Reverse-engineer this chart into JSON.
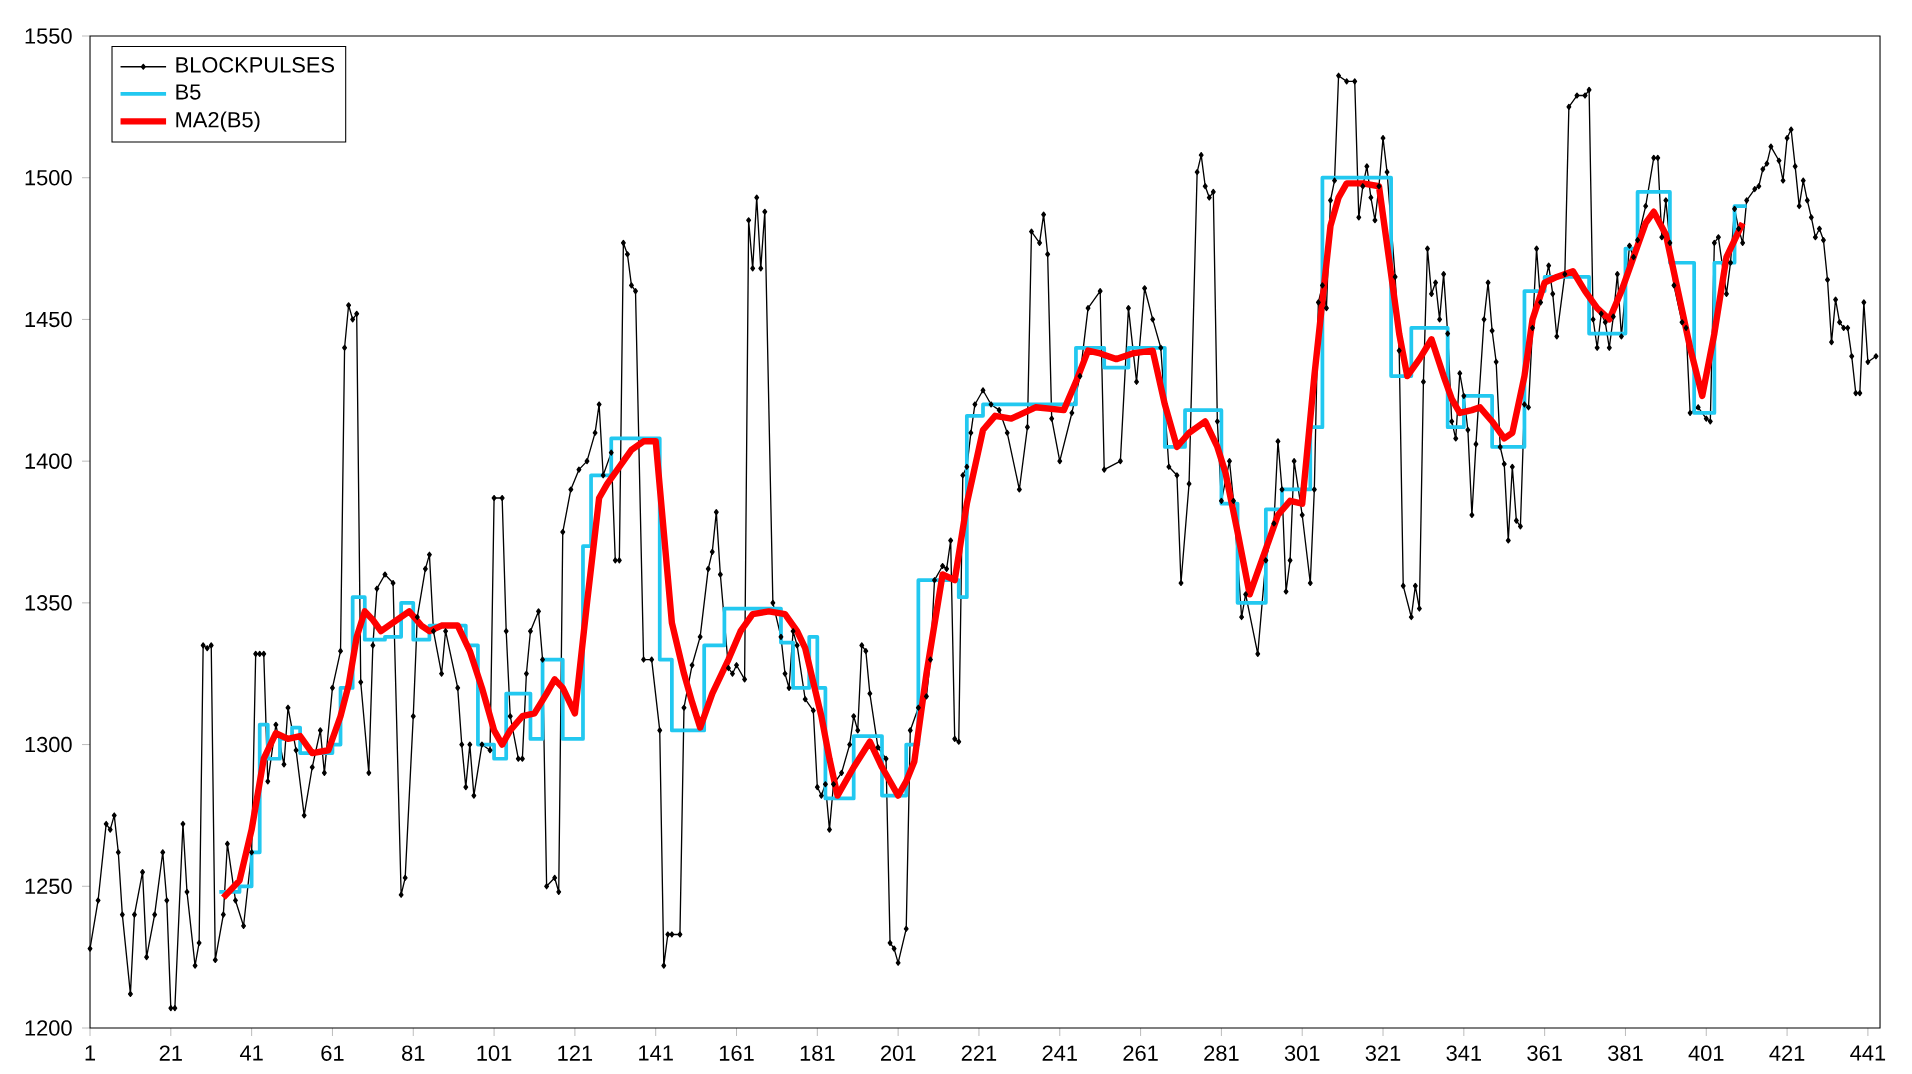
{
  "chart_data": {
    "type": "line",
    "xlim": [
      1,
      444
    ],
    "ylim": [
      1200,
      1550
    ],
    "xticks": [
      1,
      21,
      41,
      61,
      81,
      101,
      121,
      141,
      161,
      181,
      201,
      221,
      241,
      261,
      281,
      301,
      321,
      341,
      361,
      381,
      401,
      421,
      441
    ],
    "yticks": [
      1200,
      1250,
      1300,
      1350,
      1400,
      1450,
      1500,
      1550
    ],
    "legend": "top left",
    "series": [
      {
        "name": "BLOCKPULSES",
        "marker": "diamond",
        "color": "#000000",
        "x": [
          1,
          3,
          5,
          6,
          7,
          8,
          9,
          11,
          12,
          14,
          15,
          17,
          19,
          20,
          21,
          22,
          24,
          25,
          27,
          28,
          29,
          30,
          31,
          32,
          34,
          35,
          37,
          39,
          41,
          42,
          43,
          44,
          45,
          47,
          49,
          50,
          52,
          54,
          56,
          58,
          59,
          61,
          63,
          64,
          65,
          66,
          67,
          68,
          70,
          71,
          72,
          74,
          76,
          78,
          79,
          81,
          82,
          84,
          85,
          86,
          88,
          89,
          92,
          93,
          94,
          95,
          96,
          98,
          100,
          101,
          103,
          104,
          105,
          107,
          108,
          109,
          110,
          112,
          113,
          114,
          116,
          117,
          118,
          120,
          122,
          124,
          126,
          127,
          128,
          130,
          131,
          132,
          133,
          134,
          135,
          136,
          138,
          140,
          142,
          143,
          144,
          145,
          147,
          148,
          150,
          152,
          154,
          155,
          156,
          157,
          159,
          160,
          161,
          163,
          164,
          165,
          166,
          167,
          168,
          170,
          172,
          173,
          174,
          175,
          176,
          178,
          180,
          181,
          182,
          183,
          184,
          185,
          187,
          189,
          190,
          191,
          192,
          193,
          194,
          196,
          198,
          199,
          200,
          201,
          203,
          204,
          206,
          208,
          209,
          210,
          212,
          213,
          214,
          215,
          216,
          217,
          218,
          219,
          220,
          222,
          224,
          226,
          228,
          231,
          233,
          234,
          236,
          237,
          238,
          239,
          241,
          244,
          246,
          248,
          251,
          252,
          256,
          258,
          260,
          262,
          264,
          266,
          268,
          270,
          271,
          273,
          275,
          276,
          277,
          278,
          279,
          280,
          281,
          283,
          284,
          286,
          287,
          290,
          292,
          294,
          295,
          296,
          297,
          298,
          299,
          301,
          303,
          304,
          305,
          306,
          307,
          308,
          309,
          310,
          312,
          314,
          315,
          316,
          317,
          318,
          319,
          320,
          321,
          322,
          324,
          325,
          326,
          328,
          329,
          330,
          331,
          332,
          333,
          334,
          335,
          336,
          337,
          338,
          339,
          340,
          341,
          342,
          343,
          344,
          346,
          347,
          348,
          349,
          350,
          351,
          352,
          353,
          354,
          355,
          356,
          357,
          358,
          359,
          360,
          362,
          363,
          364,
          366,
          367,
          369,
          371,
          372,
          373,
          374,
          375,
          376,
          377,
          378,
          379,
          380,
          382,
          383,
          384,
          386,
          388,
          389,
          390,
          391,
          392,
          393,
          395,
          396,
          397,
          399,
          401,
          402,
          403,
          404,
          406,
          407,
          408,
          409,
          410,
          411,
          413,
          414,
          415,
          416,
          417,
          419,
          420,
          421,
          422,
          423,
          424,
          425,
          426,
          427,
          428,
          429,
          430,
          431,
          432,
          433,
          434,
          435,
          436,
          437,
          438,
          439,
          440,
          441,
          443
        ],
        "values": [
          1228,
          1245,
          1272,
          1270,
          1275,
          1262,
          1240,
          1212,
          1240,
          1255,
          1225,
          1240,
          1262,
          1245,
          1207,
          1207,
          1272,
          1248,
          1222,
          1230,
          1335,
          1334,
          1335,
          1224,
          1240,
          1265,
          1245,
          1236,
          1262,
          1332,
          1332,
          1332,
          1287,
          1307,
          1293,
          1313,
          1298,
          1275,
          1292,
          1305,
          1290,
          1320,
          1333,
          1440,
          1455,
          1450,
          1452,
          1322,
          1290,
          1335,
          1355,
          1360,
          1357,
          1247,
          1253,
          1310,
          1345,
          1362,
          1367,
          1340,
          1325,
          1340,
          1320,
          1300,
          1285,
          1300,
          1282,
          1300,
          1298,
          1387,
          1387,
          1340,
          1310,
          1295,
          1295,
          1325,
          1340,
          1347,
          1330,
          1250,
          1253,
          1248,
          1375,
          1390,
          1397,
          1400,
          1410,
          1420,
          1395,
          1403,
          1365,
          1365,
          1477,
          1473,
          1462,
          1460,
          1330,
          1330,
          1305,
          1222,
          1233,
          1233,
          1233,
          1313,
          1328,
          1338,
          1362,
          1368,
          1382,
          1360,
          1327,
          1325,
          1328,
          1323,
          1485,
          1468,
          1493,
          1468,
          1488,
          1350,
          1338,
          1325,
          1320,
          1340,
          1335,
          1316,
          1312,
          1285,
          1282,
          1286,
          1270,
          1286,
          1290,
          1300,
          1310,
          1305,
          1335,
          1333,
          1318,
          1299,
          1295,
          1230,
          1228,
          1223,
          1235,
          1305,
          1313,
          1317,
          1330,
          1358,
          1363,
          1362,
          1372,
          1302,
          1301,
          1395,
          1398,
          1410,
          1420,
          1425,
          1420,
          1418,
          1410,
          1390,
          1412,
          1481,
          1477,
          1487,
          1473,
          1415,
          1400,
          1417,
          1430,
          1454,
          1460,
          1397,
          1400,
          1454,
          1428,
          1461,
          1450,
          1440,
          1398,
          1395,
          1357,
          1392,
          1502,
          1508,
          1497,
          1493,
          1495,
          1414,
          1386,
          1400,
          1386,
          1345,
          1353,
          1332,
          1365,
          1378,
          1407,
          1390,
          1354,
          1365,
          1400,
          1381,
          1357,
          1390,
          1456,
          1462,
          1454,
          1492,
          1499,
          1536,
          1534,
          1534,
          1486,
          1497,
          1504,
          1493,
          1485,
          1497,
          1514,
          1502,
          1465,
          1439,
          1356,
          1345,
          1356,
          1348,
          1428,
          1475,
          1459,
          1463,
          1450,
          1466,
          1445,
          1414,
          1408,
          1431,
          1423,
          1411,
          1381,
          1406,
          1450,
          1463,
          1446,
          1435,
          1405,
          1399,
          1372,
          1398,
          1379,
          1377,
          1420,
          1419,
          1447,
          1475,
          1456,
          1469,
          1459,
          1444,
          1466,
          1525,
          1529,
          1529,
          1531,
          1450,
          1440,
          1452,
          1449,
          1440,
          1451,
          1466,
          1444,
          1476,
          1472,
          1478,
          1490,
          1507,
          1507,
          1479,
          1492,
          1477,
          1462,
          1449,
          1447,
          1417,
          1419,
          1415,
          1414,
          1477,
          1479,
          1459,
          1470,
          1489,
          1482,
          1477,
          1492,
          1496,
          1497,
          1503,
          1505,
          1511,
          1506,
          1499,
          1514,
          1517,
          1504,
          1490,
          1499,
          1492,
          1486,
          1479,
          1482,
          1478,
          1464,
          1442,
          1457,
          1449,
          1447,
          1447,
          1437,
          1424,
          1424,
          1456,
          1435,
          1437
        ]
      },
      {
        "name": "B5",
        "type": "step",
        "color": "#22c8f0",
        "x": [
          33,
          38,
          41,
          43,
          45,
          48,
          51,
          53,
          61,
          63,
          66,
          69,
          74,
          78,
          81,
          85,
          94,
          97,
          101,
          104,
          110,
          113,
          118,
          123,
          125,
          130,
          142,
          145,
          153,
          158,
          172,
          175,
          179,
          181,
          183,
          190,
          197,
          203,
          206,
          216,
          218,
          222,
          245,
          252,
          258,
          267,
          272,
          281,
          285,
          292,
          296,
          303,
          306,
          323,
          328,
          337,
          341,
          348,
          356,
          361,
          372,
          381,
          384,
          392,
          398,
          403,
          408,
          411
        ],
        "values": [
          1248,
          1250,
          1262,
          1307,
          1295,
          1302,
          1306,
          1297,
          1300,
          1320,
          1352,
          1337,
          1338,
          1350,
          1337,
          1342,
          1335,
          1300,
          1295,
          1318,
          1302,
          1330,
          1302,
          1370,
          1395,
          1408,
          1330,
          1305,
          1335,
          1348,
          1336,
          1320,
          1338,
          1320,
          1281,
          1303,
          1282,
          1300,
          1358,
          1352,
          1416,
          1420,
          1440,
          1433,
          1440,
          1405,
          1418,
          1385,
          1350,
          1383,
          1390,
          1412,
          1500,
          1430,
          1447,
          1412,
          1423,
          1405,
          1460,
          1465,
          1445,
          1475,
          1495,
          1470,
          1417,
          1470,
          1490,
          1490
        ]
      },
      {
        "name": "MA2(B5)",
        "color": "#ff0000",
        "x": [
          34,
          38,
          41,
          44,
          47,
          50,
          53,
          56,
          60,
          63,
          65,
          67,
          69,
          71,
          73,
          76,
          80,
          83,
          85,
          88,
          92,
          95,
          98,
          101,
          103,
          105,
          108,
          111,
          114,
          116,
          118,
          121,
          124,
          127,
          129,
          132,
          135,
          138,
          141,
          143,
          145,
          148,
          150,
          152,
          155,
          159,
          162,
          165,
          169,
          173,
          176,
          178,
          182,
          184,
          186,
          190,
          194,
          197,
          201,
          203,
          205,
          208,
          212,
          215,
          218,
          222,
          225,
          229,
          235,
          242,
          245,
          248,
          251,
          255,
          259,
          264,
          267,
          270,
          273,
          277,
          280,
          282,
          285,
          288,
          291,
          295,
          298,
          301,
          304,
          308,
          310,
          312,
          316,
          320,
          323,
          325,
          327,
          330,
          333,
          336,
          338,
          340,
          343,
          345,
          348,
          351,
          353,
          356,
          358,
          361,
          364,
          368,
          371,
          374,
          377,
          380,
          383,
          386,
          388,
          391,
          394,
          397,
          400,
          403,
          406,
          408,
          410
        ],
        "values": [
          1246,
          1252,
          1270,
          1295,
          1304,
          1302,
          1303,
          1297,
          1298,
          1310,
          1321,
          1338,
          1347,
          1344,
          1340,
          1343,
          1347,
          1342,
          1340,
          1342,
          1342,
          1333,
          1320,
          1305,
          1300,
          1305,
          1310,
          1311,
          1318,
          1323,
          1320,
          1311,
          1350,
          1387,
          1392,
          1398,
          1404,
          1407,
          1407,
          1375,
          1343,
          1325,
          1315,
          1306,
          1318,
          1330,
          1340,
          1346,
          1347,
          1346,
          1340,
          1334,
          1310,
          1295,
          1282,
          1292,
          1301,
          1292,
          1282,
          1287,
          1294,
          1325,
          1360,
          1358,
          1385,
          1411,
          1416,
          1415,
          1419,
          1418,
          1428,
          1439,
          1438,
          1436,
          1438,
          1439,
          1420,
          1405,
          1410,
          1414,
          1405,
          1396,
          1375,
          1353,
          1365,
          1381,
          1386,
          1385,
          1430,
          1483,
          1493,
          1498,
          1498,
          1497,
          1466,
          1445,
          1430,
          1436,
          1443,
          1430,
          1422,
          1417,
          1418,
          1419,
          1414,
          1408,
          1410,
          1430,
          1450,
          1463,
          1465,
          1467,
          1460,
          1454,
          1450,
          1460,
          1472,
          1484,
          1488,
          1480,
          1460,
          1440,
          1423,
          1445,
          1472,
          1478,
          1484
        ]
      }
    ]
  }
}
